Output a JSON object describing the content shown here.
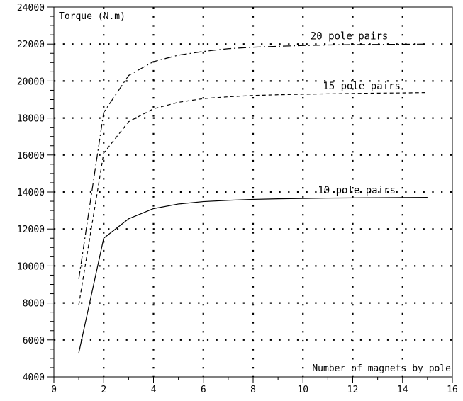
{
  "chart_data": {
    "type": "line",
    "ylabel": "Torque (N.m)",
    "xlabel": "Number of magnets by pole",
    "xlim": [
      0,
      16
    ],
    "ylim": [
      4000,
      24000
    ],
    "x_ticks": [
      "0",
      "2",
      "4",
      "6",
      "8",
      "10",
      "12",
      "14",
      "16"
    ],
    "y_ticks": [
      "4000",
      "6000",
      "8000",
      "10000",
      "12000",
      "14000",
      "16000",
      "18000",
      "20000",
      "22000",
      "24000"
    ],
    "grid": "dotted",
    "series": [
      {
        "name": "10 pole pairs",
        "style": "solid",
        "x": [
          1,
          2,
          3,
          4,
          5,
          6,
          7,
          8,
          9,
          10,
          11,
          12,
          13,
          14,
          15
        ],
        "y": [
          5300,
          11500,
          12550,
          13100,
          13350,
          13480,
          13550,
          13600,
          13630,
          13650,
          13670,
          13680,
          13690,
          13700,
          13710
        ]
      },
      {
        "name": "15 pole pairs",
        "style": "dashed",
        "x": [
          1,
          2,
          3,
          4,
          5,
          6,
          7,
          8,
          9,
          10,
          11,
          12,
          13,
          14,
          15
        ],
        "y": [
          7900,
          16100,
          17800,
          18500,
          18850,
          19050,
          19150,
          19220,
          19260,
          19290,
          19310,
          19330,
          19350,
          19360,
          19380
        ]
      },
      {
        "name": "20 pole pairs",
        "style": "dashdot",
        "x": [
          1,
          2,
          3,
          4,
          5,
          6,
          7,
          8,
          9,
          10,
          11,
          12,
          13,
          14,
          15
        ],
        "y": [
          9300,
          18300,
          20300,
          21050,
          21400,
          21600,
          21750,
          21830,
          21880,
          21920,
          21950,
          21970,
          21980,
          21990,
          22000
        ]
      }
    ],
    "annotations": [
      {
        "text": "20 pole pairs",
        "x": 10.3,
        "y": 22250
      },
      {
        "text": "15 pole pairs",
        "x": 10.8,
        "y": 19550
      },
      {
        "text": "10 pole pairs",
        "x": 10.6,
        "y": 13930
      }
    ]
  }
}
